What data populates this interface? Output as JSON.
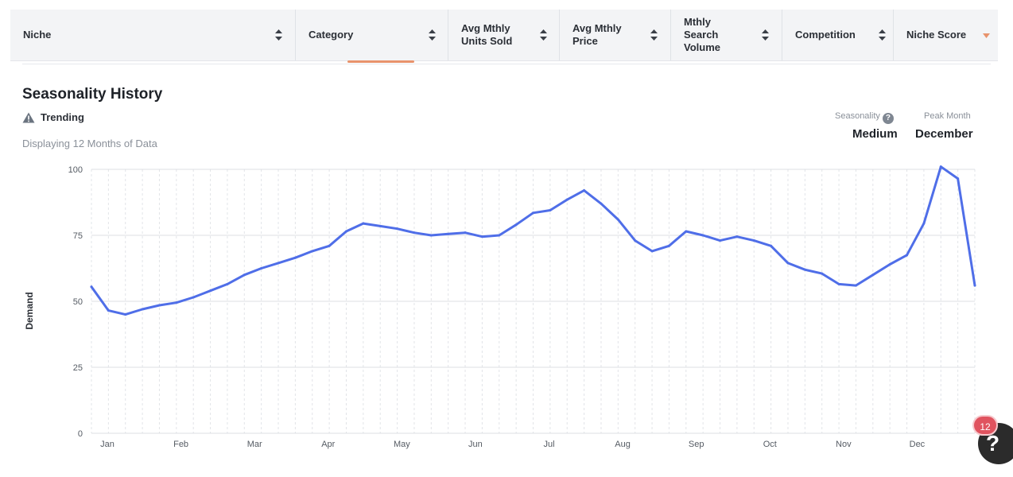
{
  "table_header": {
    "columns": [
      {
        "label": "Niche",
        "sort": "both"
      },
      {
        "label": "Category",
        "sort": "both"
      },
      {
        "label": "Avg Mthly Units Sold",
        "sort": "both"
      },
      {
        "label": "Avg Mthly Price",
        "sort": "both"
      },
      {
        "label": "Mthly Search Volume",
        "sort": "both"
      },
      {
        "label": "Competition",
        "sort": "both"
      },
      {
        "label": "Niche Score",
        "sort": "desc-active"
      }
    ]
  },
  "section": {
    "title": "Seasonality History",
    "trend_label": "Trending",
    "trend_icon": "warning-triangle-icon",
    "subtitle": "Displaying 12 Months of Data"
  },
  "stats": {
    "seasonality_label": "Seasonality",
    "seasonality_value": "Medium",
    "peak_month_label": "Peak Month",
    "peak_month_value": "December"
  },
  "colors": {
    "line": "#4f6ee8",
    "accent": "#e8936c",
    "badge": "#e0535f"
  },
  "help_widget": {
    "badge_count": "12",
    "icon_label": "?"
  },
  "chart_data": {
    "type": "line",
    "title": "",
    "xlabel": "",
    "ylabel": "Demand",
    "ylim": [
      0,
      100
    ],
    "yticks": [
      0,
      25,
      50,
      75,
      100
    ],
    "month_labels": [
      "Jan",
      "Feb",
      "Mar",
      "Apr",
      "May",
      "Jun",
      "Jul",
      "Aug",
      "Sep",
      "Oct",
      "Nov",
      "Dec"
    ],
    "grid": "horizontal solid, vertical dashed per data point",
    "series": [
      {
        "name": "",
        "values": [
          55.5,
          46.5,
          45,
          47,
          48.5,
          49.5,
          51.5,
          54,
          56.5,
          60,
          62.5,
          64.5,
          66.5,
          69,
          71,
          76.5,
          79.5,
          78.5,
          77.5,
          76,
          75,
          75.5,
          76,
          74.5,
          75,
          79,
          83.5,
          84.5,
          88.5,
          92,
          87,
          81,
          73,
          69,
          71,
          76.5,
          75,
          73,
          74.5,
          73,
          71,
          64.5,
          62,
          60.5,
          56.5,
          56,
          60,
          64,
          67.5,
          79.5,
          101,
          96.5,
          56
        ]
      }
    ]
  }
}
